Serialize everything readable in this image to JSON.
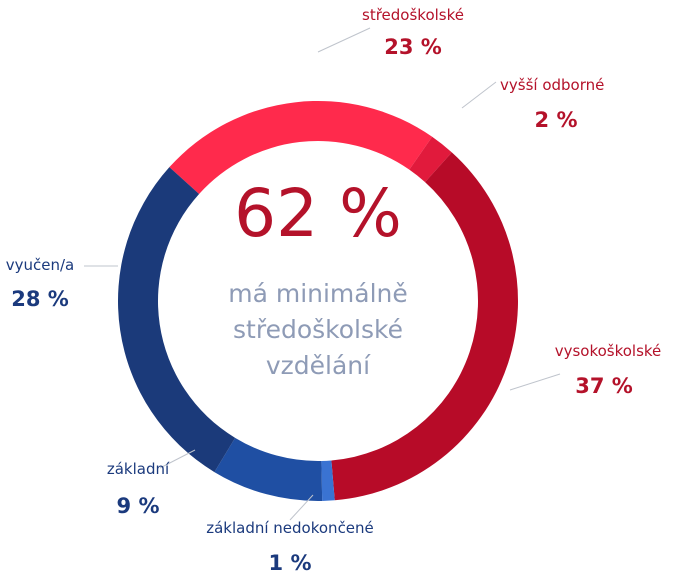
{
  "chart_data": {
    "type": "pie",
    "slices": [
      {
        "label": "středoškolské",
        "value": 23,
        "value_label": "23 %",
        "color": "#ff2a4c",
        "label_color": "#b4122a"
      },
      {
        "label": "vyšší odborné",
        "value": 2,
        "value_label": "2 %",
        "color": "#e11a3c",
        "label_color": "#b4122a"
      },
      {
        "label": "vysokoškolské",
        "value": 37,
        "value_label": "37 %",
        "color": "#b70b28",
        "label_color": "#b4122a"
      },
      {
        "label": "základní nedokončené",
        "value": 1,
        "value_label": "1 %",
        "color": "#3a73d2",
        "label_color": "#1b3a7d"
      },
      {
        "label": "základní",
        "value": 9,
        "value_label": "9 %",
        "color": "#1f4fa3",
        "label_color": "#1b3a7d"
      },
      {
        "label": "vyučen/a",
        "value": 28,
        "value_label": "28 %",
        "color": "#1b3a7a",
        "label_color": "#1b3a7d"
      }
    ],
    "center": {
      "value": "62 %",
      "text_lines": [
        "má minimálně",
        "středoškolské",
        "vzdělání"
      ]
    }
  },
  "colors": {
    "center_value": "#b4122a",
    "center_text": "#8e9bb6",
    "leader_line": "#bfc4cc"
  }
}
